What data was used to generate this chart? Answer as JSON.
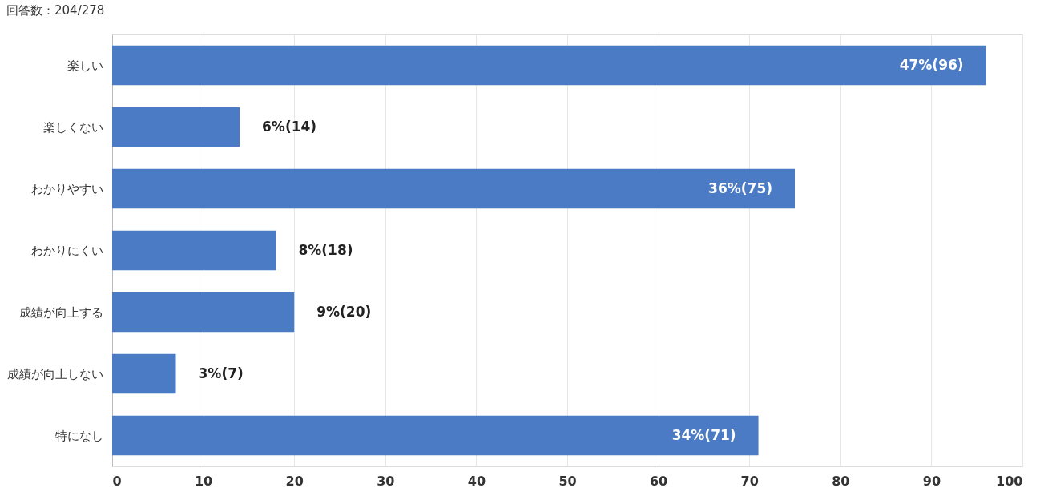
{
  "chart_data": {
    "type": "bar",
    "orientation": "horizontal",
    "title": "回答数：204/278",
    "categories": [
      "楽しい",
      "楽しくない",
      "わかりやすい",
      "わかりにくい",
      "成績が向上する",
      "成績が向上しない",
      "特になし"
    ],
    "values": [
      96,
      14,
      75,
      18,
      20,
      7,
      71
    ],
    "value_labels": [
      "47%(96)",
      "6%(14)",
      "36%(75)",
      "8%(18)",
      "9%(20)",
      "3%(7)",
      "34%(71)"
    ],
    "color": "#4a7bc4",
    "xlim": [
      0,
      100
    ],
    "xticks": [
      0,
      10,
      20,
      30,
      40,
      50,
      60,
      70,
      80,
      90,
      100
    ],
    "grid": "x"
  }
}
